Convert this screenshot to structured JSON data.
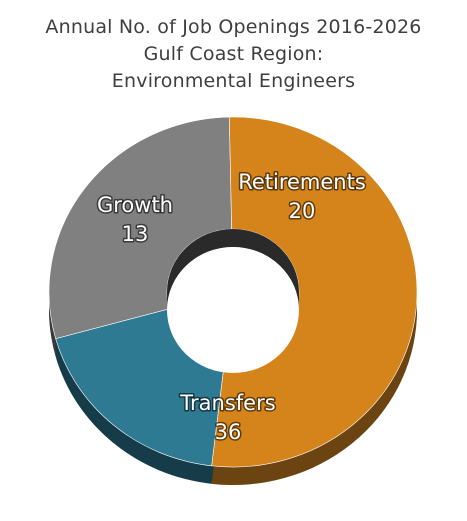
{
  "chart_data": {
    "type": "pie",
    "variant": "donut",
    "title_lines": [
      "Annual No. of Job Openings 2016-2026",
      "Gulf Coast Region:",
      "Environmental Engineers"
    ],
    "slices": [
      {
        "name": "Retirements",
        "value": 20,
        "color": "#808080",
        "side_color": "#3a3a3a"
      },
      {
        "name": "Transfers",
        "value": 36,
        "color": "#d4841a",
        "side_color": "#6b4412"
      },
      {
        "name": "Growth",
        "value": 13,
        "color": "#2e7a93",
        "side_color": "#163c4a"
      }
    ]
  }
}
